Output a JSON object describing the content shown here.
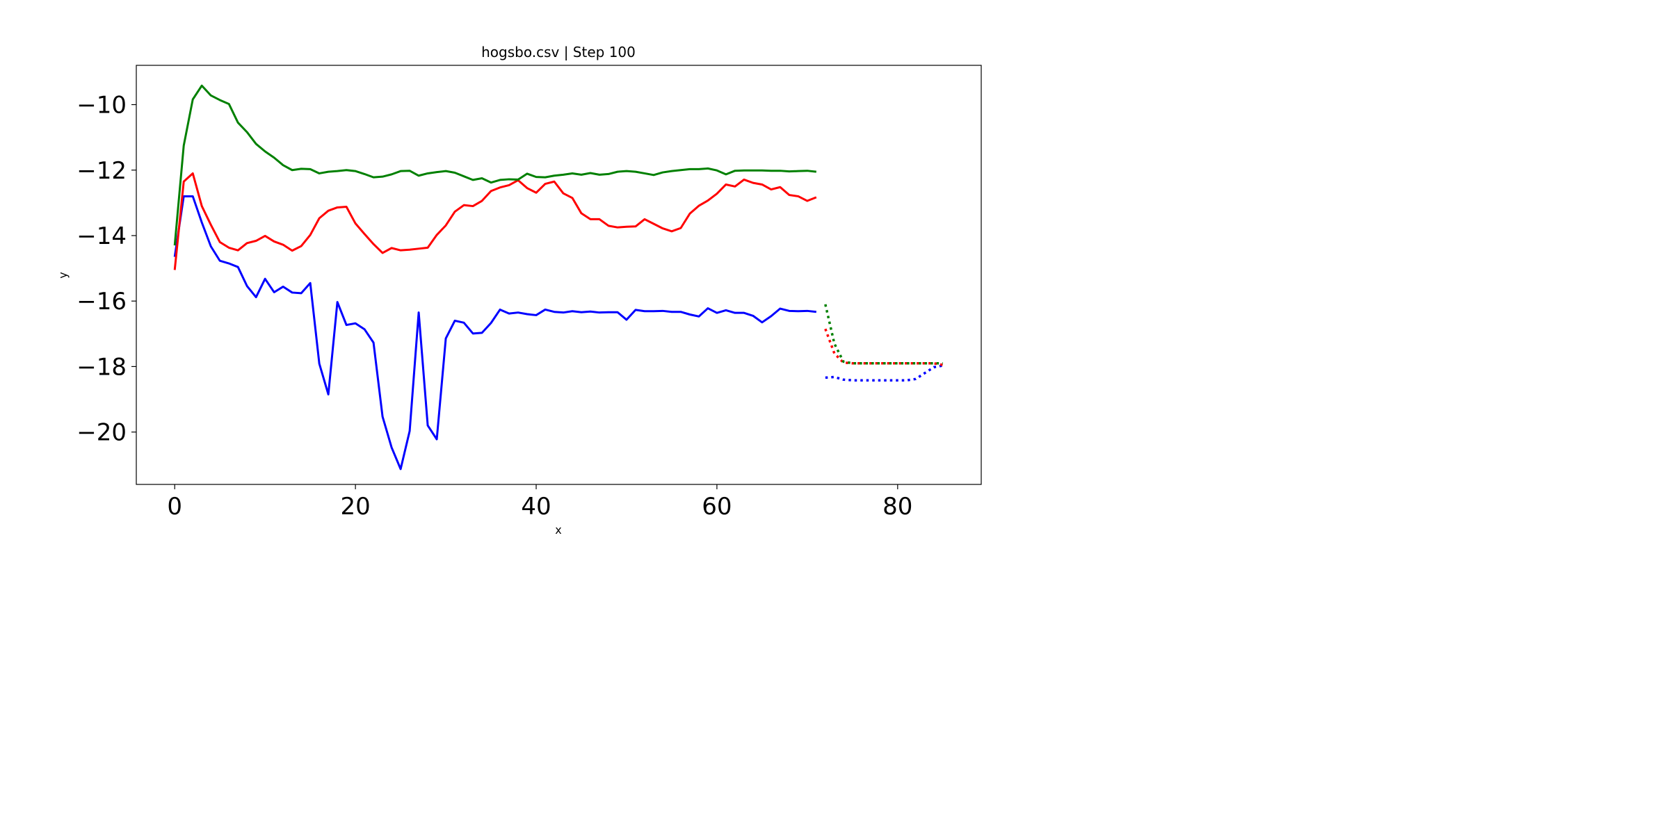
{
  "chart_data": {
    "type": "line",
    "title": "hogsbo.csv | Step 100",
    "xlabel": "x",
    "ylabel": "y",
    "xlim": [
      -4.25,
      89.25
    ],
    "ylim": [
      -21.6,
      -8.8
    ],
    "grid": false,
    "x_ticks": [
      0,
      20,
      40,
      60,
      80
    ],
    "y_ticks": [
      -20,
      -18,
      -16,
      -14,
      -12,
      -10
    ],
    "x_tick_labels": [
      "0",
      "20",
      "40",
      "60",
      "80"
    ],
    "y_tick_labels": [
      "−20",
      "−18",
      "−16",
      "−14",
      "−12",
      "−10"
    ],
    "series": [
      {
        "name": "blue",
        "color": "#0000ff",
        "style": "solid",
        "x_start": 0,
        "values": [
          -14.65,
          -12.8,
          -12.8,
          -13.6,
          -14.33,
          -14.77,
          -14.85,
          -14.96,
          -15.54,
          -15.88,
          -15.32,
          -15.73,
          -15.56,
          -15.74,
          -15.76,
          -15.45,
          -17.91,
          -18.85,
          -16.03,
          -16.73,
          -16.68,
          -16.86,
          -17.27,
          -19.53,
          -20.47,
          -21.13,
          -19.97,
          -16.35,
          -19.8,
          -20.22,
          -17.14,
          -16.6,
          -16.66,
          -16.99,
          -16.97,
          -16.67,
          -16.26,
          -16.38,
          -16.35,
          -16.4,
          -16.43,
          -16.26,
          -16.33,
          -16.35,
          -16.31,
          -16.34,
          -16.32,
          -16.35,
          -16.34,
          -16.34,
          -16.57,
          -16.27,
          -16.31,
          -16.31,
          -16.3,
          -16.33,
          -16.33,
          -16.41,
          -16.47,
          -16.22,
          -16.36,
          -16.28,
          -16.36,
          -16.36,
          -16.45,
          -16.65,
          -16.46,
          -16.23,
          -16.3,
          -16.31,
          -16.3,
          -16.33
        ]
      },
      {
        "name": "red",
        "color": "#ff0000",
        "style": "solid",
        "x_start": 0,
        "values": [
          -15.05,
          -12.35,
          -12.1,
          -13.1,
          -13.67,
          -14.2,
          -14.37,
          -14.45,
          -14.23,
          -14.16,
          -14.01,
          -14.18,
          -14.28,
          -14.46,
          -14.32,
          -13.98,
          -13.47,
          -13.24,
          -13.14,
          -13.12,
          -13.63,
          -13.95,
          -14.26,
          -14.53,
          -14.38,
          -14.45,
          -14.43,
          -14.4,
          -14.37,
          -13.98,
          -13.69,
          -13.27,
          -13.07,
          -13.1,
          -12.94,
          -12.64,
          -12.53,
          -12.46,
          -12.31,
          -12.55,
          -12.69,
          -12.42,
          -12.35,
          -12.71,
          -12.85,
          -13.32,
          -13.5,
          -13.5,
          -13.7,
          -13.75,
          -13.73,
          -13.72,
          -13.5,
          -13.64,
          -13.78,
          -13.87,
          -13.77,
          -13.33,
          -13.09,
          -12.93,
          -12.72,
          -12.44,
          -12.5,
          -12.29,
          -12.39,
          -12.44,
          -12.59,
          -12.52,
          -12.76,
          -12.8,
          -12.94,
          -12.83
        ]
      },
      {
        "name": "green",
        "color": "#008000",
        "style": "solid",
        "x_start": 0,
        "values": [
          -14.3,
          -11.25,
          -9.84,
          -9.42,
          -9.72,
          -9.86,
          -9.98,
          -10.55,
          -10.84,
          -11.2,
          -11.43,
          -11.62,
          -11.85,
          -12.0,
          -11.96,
          -11.97,
          -12.1,
          -12.05,
          -12.03,
          -12.0,
          -12.03,
          -12.12,
          -12.22,
          -12.2,
          -12.13,
          -12.03,
          -12.02,
          -12.17,
          -12.1,
          -12.06,
          -12.03,
          -12.08,
          -12.19,
          -12.3,
          -12.25,
          -12.38,
          -12.3,
          -12.28,
          -12.29,
          -12.11,
          -12.21,
          -12.22,
          -12.17,
          -12.14,
          -12.1,
          -12.14,
          -12.09,
          -12.14,
          -12.12,
          -12.05,
          -12.03,
          -12.05,
          -12.1,
          -12.15,
          -12.07,
          -12.03,
          -12.0,
          -11.97,
          -11.97,
          -11.95,
          -12.01,
          -12.13,
          -12.02,
          -12.01,
          -12.01,
          -12.01,
          -12.02,
          -12.02,
          -12.04,
          -12.03,
          -12.02,
          -12.05
        ]
      },
      {
        "name": "blue-forecast",
        "color": "#0000ff",
        "style": "dotted",
        "x_start": 72,
        "values": [
          -18.34,
          -18.32,
          -18.4,
          -18.42,
          -18.42,
          -18.42,
          -18.42,
          -18.42,
          -18.42,
          -18.42,
          -18.38,
          -18.2,
          -18.02,
          -17.97
        ]
      },
      {
        "name": "red-forecast",
        "color": "#ff0000",
        "style": "dotted",
        "x_start": 72,
        "values": [
          -16.85,
          -17.6,
          -17.88,
          -17.9,
          -17.9,
          -17.9,
          -17.9,
          -17.9,
          -17.9,
          -17.9,
          -17.9,
          -17.9,
          -17.9,
          -17.95
        ]
      },
      {
        "name": "green-forecast",
        "color": "#008000",
        "style": "dotted",
        "x_start": 72,
        "values": [
          -16.1,
          -17.3,
          -17.85,
          -17.9,
          -17.9,
          -17.9,
          -17.9,
          -17.9,
          -17.9,
          -17.9,
          -17.9,
          -17.9,
          -17.9,
          -17.9
        ]
      }
    ]
  }
}
